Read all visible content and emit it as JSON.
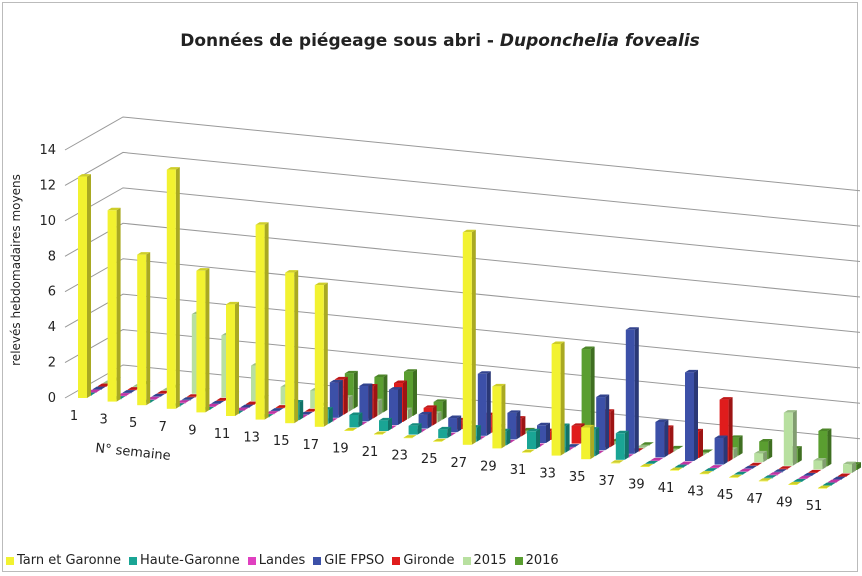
{
  "chart_data": {
    "type": "bar3d",
    "title": "Données de piégeage sous abri -",
    "title_italic": "Duponchelia fovealis",
    "y_label": "relevés hebdomadaires moyens",
    "x_label": "N° semaine",
    "categories": [
      1,
      3,
      5,
      7,
      9,
      11,
      13,
      15,
      17,
      19,
      21,
      23,
      25,
      27,
      29,
      31,
      33,
      35,
      37,
      39,
      41,
      43,
      45,
      47,
      49,
      51
    ],
    "ylim": [
      0,
      14
    ],
    "yticks": [
      0,
      2,
      4,
      6,
      8,
      10,
      12,
      14
    ],
    "grid": true,
    "series": [
      {
        "name": "Tarn et Garonne",
        "color": "#f2f230",
        "values": [
          12.5,
          10.8,
          8.5,
          13.5,
          8,
          6.3,
          11,
          8.5,
          8,
          0,
          0,
          0,
          0,
          12,
          3.5,
          0,
          6.3,
          1.8,
          0,
          0,
          0,
          0,
          0,
          0,
          0,
          0
        ]
      },
      {
        "name": "Haute-Garonne",
        "color": "#1aa595",
        "values": [
          0,
          0,
          0,
          0,
          0,
          0,
          0,
          1,
          0.8,
          0.7,
          0.6,
          0.5,
          0.5,
          0.8,
          0.8,
          1,
          1.5,
          1.5,
          1.5,
          0,
          0,
          0,
          0,
          0,
          0,
          0
        ]
      },
      {
        "name": "Landes",
        "color": "#e040c0",
        "values": [
          0,
          0,
          0,
          0,
          0,
          0,
          0,
          0,
          0,
          0,
          0,
          0,
          0,
          0,
          0,
          0,
          0,
          0,
          0,
          0,
          0,
          0,
          0,
          0,
          0,
          0
        ]
      },
      {
        "name": "GIE FPSO",
        "color": "#3c50a8",
        "values": [
          0,
          0,
          0,
          0,
          0,
          0,
          0,
          0,
          2,
          2,
          2,
          0.8,
          0.8,
          3.5,
          1.5,
          1,
          0,
          3,
          7,
          2,
          5,
          1.5,
          0,
          0,
          0,
          0
        ]
      },
      {
        "name": "Gironde",
        "color": "#e01c1c",
        "values": [
          0,
          0,
          0,
          0,
          0,
          0,
          0,
          0,
          2,
          1.8,
          2.2,
          1,
          0.5,
          1,
          1,
          0.5,
          1,
          2,
          0,
          1.5,
          1.5,
          3.5,
          0,
          0,
          0,
          0
        ]
      },
      {
        "name": "2015",
        "color": "#b8e0a0",
        "values": [
          0,
          0,
          0,
          4.5,
          3.5,
          2,
          1,
          1,
          0.8,
          0.8,
          0.5,
          0.5,
          0,
          0,
          0,
          0,
          0,
          0,
          0,
          0,
          0,
          0.5,
          0.5,
          3,
          0.5,
          0.5
        ]
      },
      {
        "name": "2016",
        "color": "#5a9e30",
        "values": [
          0,
          0,
          0,
          0,
          0,
          0,
          0,
          0,
          2,
          2,
          2.5,
          1,
          0,
          0,
          0,
          0,
          5,
          0,
          0,
          0,
          0,
          1,
          1,
          0.8,
          2,
          0.3
        ]
      }
    ]
  }
}
